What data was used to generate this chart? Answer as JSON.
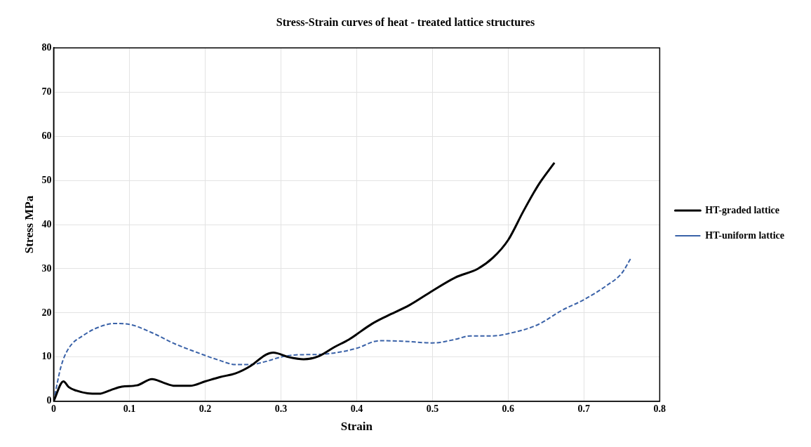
{
  "chart_data": {
    "type": "line",
    "title": "Stress-Strain curves of heat - treated lattice structures",
    "xlabel": "Strain",
    "ylabel": "Stress MPa",
    "xlim": [
      0,
      0.8
    ],
    "xticks": [
      0,
      0.1,
      0.2,
      0.3,
      0.4,
      0.5,
      0.6,
      0.7,
      0.8
    ],
    "ylim": [
      0,
      80
    ],
    "yticks": [
      0,
      10,
      20,
      30,
      40,
      50,
      60,
      70,
      80
    ],
    "grid": true,
    "legend": "right",
    "marker": "none",
    "series": [
      {
        "name": "HT-graded lattice",
        "color": "#000000",
        "line_style": "solid",
        "x": [
          0,
          0.013,
          0.02,
          0.03,
          0.045,
          0.06,
          0.075,
          0.09,
          0.11,
          0.13,
          0.145,
          0.16,
          0.18,
          0.2,
          0.22,
          0.24,
          0.26,
          0.28,
          0.29,
          0.31,
          0.33,
          0.35,
          0.37,
          0.39,
          0.42,
          0.44,
          0.47,
          0.5,
          0.53,
          0.56,
          0.58,
          0.6,
          0.62,
          0.64,
          0.661
        ],
        "values": [
          0,
          4.5,
          3.2,
          2.4,
          1.8,
          1.7,
          2.5,
          3.3,
          3.6,
          5,
          4.2,
          3.5,
          3.5,
          4.5,
          5.5,
          6.3,
          8,
          10.5,
          11,
          10,
          9.5,
          10.2,
          12.2,
          14,
          17.5,
          19.3,
          21.8,
          25,
          28,
          30,
          32.5,
          36.5,
          43,
          49,
          54
        ]
      },
      {
        "name": "HT-uniform lattice",
        "color": "#3a62a8",
        "line_style": "dashed",
        "x": [
          0,
          0.01,
          0.02,
          0.04,
          0.06,
          0.08,
          0.1,
          0.13,
          0.16,
          0.19,
          0.22,
          0.24,
          0.26,
          0.28,
          0.3,
          0.32,
          0.35,
          0.38,
          0.4,
          0.43,
          0.46,
          0.5,
          0.53,
          0.55,
          0.58,
          0.6,
          0.64,
          0.67,
          0.7,
          0.73,
          0.75,
          0.762
        ],
        "values": [
          0,
          8,
          12,
          15,
          16.8,
          17.6,
          17.4,
          15.5,
          13,
          11,
          9.2,
          8.3,
          8.3,
          9,
          10,
          10.5,
          10.6,
          11.2,
          12,
          13.7,
          13.6,
          13.2,
          14,
          14.8,
          14.8,
          15.3,
          17.4,
          20.5,
          23,
          26.2,
          29,
          32.4
        ]
      }
    ]
  }
}
